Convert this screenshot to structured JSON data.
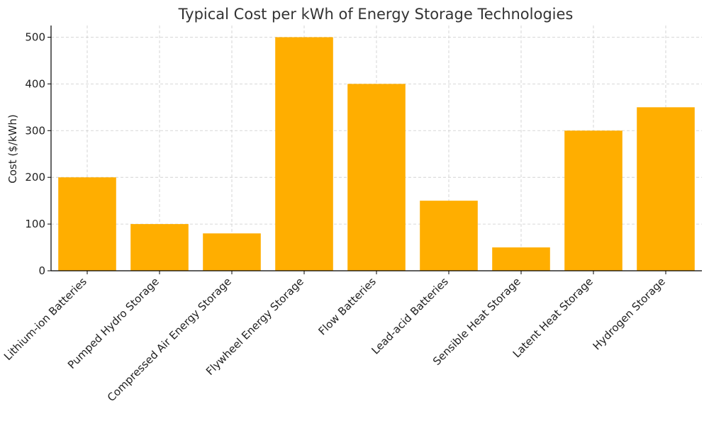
{
  "chart_data": {
    "type": "bar",
    "title": "Typical Cost per kWh of Energy Storage Technologies",
    "xlabel": "",
    "ylabel": "Cost ($/kWh)",
    "categories": [
      "Lithium-ion Batteries",
      "Pumped Hydro Storage",
      "Compressed Air Energy Storage",
      "Flywheel Energy Storage",
      "Flow Batteries",
      "Lead-acid Batteries",
      "Sensible Heat Storage",
      "Latent Heat Storage",
      "Hydrogen Storage"
    ],
    "values": [
      200,
      100,
      80,
      500,
      400,
      150,
      50,
      300,
      350
    ],
    "ylim": [
      0,
      525
    ],
    "yticks": [
      0,
      100,
      200,
      300,
      400,
      500
    ],
    "grid": true,
    "bar_color": "#ffae00"
  }
}
